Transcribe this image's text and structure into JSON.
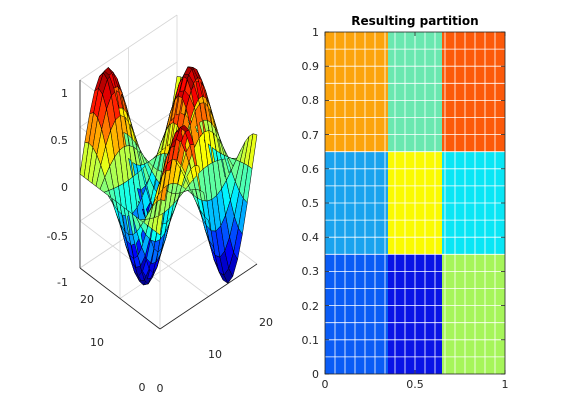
{
  "chart_data": [
    {
      "type": "surface",
      "function": "sin(x/3) * cos(y/3) sampled on a 21x21 grid",
      "x": [
        0,
        1,
        2,
        3,
        4,
        5,
        6,
        7,
        8,
        9,
        10,
        11,
        12,
        13,
        14,
        15,
        16,
        17,
        18,
        19,
        20
      ],
      "y": [
        0,
        1,
        2,
        3,
        4,
        5,
        6,
        7,
        8,
        9,
        10,
        11,
        12,
        13,
        14,
        15,
        16,
        17,
        18,
        19,
        20
      ],
      "xlim": [
        0,
        20
      ],
      "ylim": [
        0,
        20
      ],
      "zlim": [
        -1,
        1
      ],
      "x_ticks": [
        "0",
        "10",
        "20"
      ],
      "y_ticks": [
        "0",
        "10",
        "20"
      ],
      "z_ticks": [
        "-1",
        "-0.5",
        "0",
        "0.5",
        "1"
      ],
      "colormap": "jet",
      "edge_color": "#000000",
      "grid": true
    },
    {
      "type": "heatmap",
      "title": "Resulting partition",
      "xlim": [
        0,
        1
      ],
      "ylim": [
        0,
        1
      ],
      "x_ticks": [
        "0",
        "0.5",
        "1"
      ],
      "y_ticks": [
        "0",
        "0.1",
        "0.2",
        "0.3",
        "0.4",
        "0.5",
        "0.6",
        "0.7",
        "0.8",
        "0.9",
        "1"
      ],
      "grid_cells": [
        18,
        20
      ],
      "cell_edge_color": "#ffffff",
      "regions": [
        {
          "x": [
            0,
            0.35
          ],
          "y": [
            0,
            0.35
          ],
          "color": "#0a5cf5"
        },
        {
          "x": [
            0.35,
            0.65
          ],
          "y": [
            0,
            0.35
          ],
          "color": "#0a14e6"
        },
        {
          "x": [
            0.65,
            1
          ],
          "y": [
            0,
            0.35
          ],
          "color": "#a6f55a"
        },
        {
          "x": [
            0,
            0.35
          ],
          "y": [
            0.35,
            0.65
          ],
          "color": "#19a3ee"
        },
        {
          "x": [
            0.35,
            0.65
          ],
          "y": [
            0.35,
            0.65
          ],
          "color": "#fafa00"
        },
        {
          "x": [
            0.65,
            1
          ],
          "y": [
            0.35,
            0.65
          ],
          "color": "#0ae6f5"
        },
        {
          "x": [
            0,
            0.35
          ],
          "y": [
            0.65,
            1
          ],
          "color": "#fca40c"
        },
        {
          "x": [
            0.35,
            0.65
          ],
          "y": [
            0.65,
            1
          ],
          "color": "#6ae8b0"
        },
        {
          "x": [
            0.65,
            1
          ],
          "y": [
            0.65,
            1
          ],
          "color": "#fc5a0a"
        }
      ]
    }
  ]
}
